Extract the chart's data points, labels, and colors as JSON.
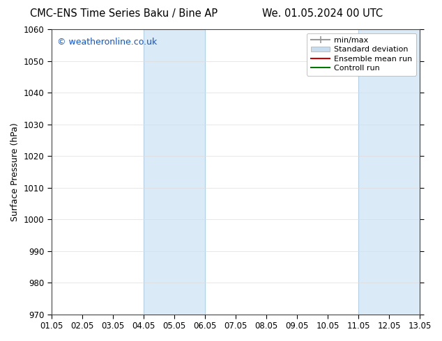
{
  "title_left": "CMC-ENS Time Series Baku / Bine AP",
  "title_right": "We. 01.05.2024 00 UTC",
  "ylabel": "Surface Pressure (hPa)",
  "xlabel": "",
  "xlim_start": 0,
  "xlim_end": 12,
  "ylim": [
    970,
    1060
  ],
  "yticks": [
    970,
    980,
    990,
    1000,
    1010,
    1020,
    1030,
    1040,
    1050,
    1060
  ],
  "xtick_labels": [
    "01.05",
    "02.05",
    "03.05",
    "04.05",
    "05.05",
    "06.05",
    "07.05",
    "08.05",
    "09.05",
    "10.05",
    "11.05",
    "12.05",
    "13.05"
  ],
  "shaded_bands": [
    {
      "x_start": 3,
      "x_end": 5
    },
    {
      "x_start": 10,
      "x_end": 12
    }
  ],
  "shaded_color": "#daeaf7",
  "shaded_edge_color": "#b0cfe8",
  "watermark_text": "© weatheronline.co.uk",
  "watermark_color": "#1155cc",
  "legend_entries": [
    {
      "label": "min/max",
      "color": "#999999",
      "lw": 1.5,
      "type": "line_with_caps"
    },
    {
      "label": "Standard deviation",
      "color": "#c8ddf0",
      "lw": 6,
      "type": "patch"
    },
    {
      "label": "Ensemble mean run",
      "color": "#cc0000",
      "lw": 1.5,
      "type": "line"
    },
    {
      "label": "Controll run",
      "color": "#007700",
      "lw": 1.5,
      "type": "line"
    }
  ],
  "grid_color": "#dddddd",
  "background_color": "#ffffff",
  "title_fontsize": 10.5,
  "axis_label_fontsize": 9,
  "tick_fontsize": 8.5,
  "watermark_fontsize": 9,
  "legend_fontsize": 8
}
